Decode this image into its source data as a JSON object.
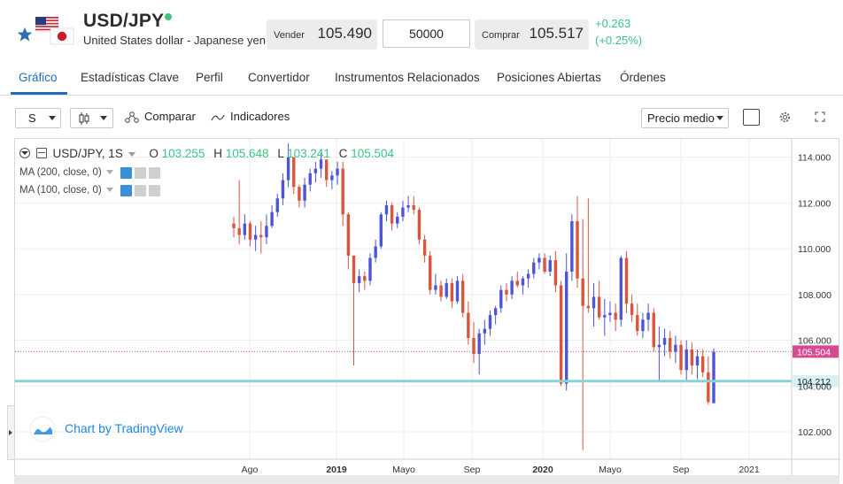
{
  "header": {
    "symbol": "USD/JPY",
    "name": "United States dollar - Japanese yen",
    "sell_label": "Vender",
    "sell_price": "105.490",
    "quantity": "50000",
    "buy_label": "Comprar",
    "buy_price": "105.517",
    "change_abs": "+0.263",
    "change_pct": "(+0.25%)",
    "colors": {
      "up": "#3dc486",
      "accent": "#1d6fb8",
      "star": "#2f6fb0"
    }
  },
  "tabs": [
    {
      "label": "Gráfico",
      "active": true
    },
    {
      "label": "Estadísticas Clave"
    },
    {
      "label": "Perfil"
    },
    {
      "label": "Convertidor"
    },
    {
      "label": "Instrumentos Relacionados"
    },
    {
      "label": "Posiciones Abiertas"
    },
    {
      "label": "Órdenes"
    }
  ],
  "toolbar": {
    "interval": "S",
    "compare_label": "Comparar",
    "indicators_label": "Indicadores",
    "price_type": "Precio medio"
  },
  "legend": {
    "title": "USD/JPY, 1S",
    "o_label": "O",
    "o": "103.255",
    "h_label": "H",
    "h": "105.648",
    "l_label": "L",
    "l": "103.241",
    "c_label": "C",
    "c": "105.504",
    "ma1": "MA (200, close, 0)",
    "ma2": "MA (100, close, 0)"
  },
  "branding": {
    "text": "Chart by TradingView"
  },
  "chart_data": {
    "type": "candlestick",
    "interval": "1S",
    "x_ticks": [
      "Ago",
      "2019",
      "Mayo",
      "Sep",
      "2020",
      "Mayo",
      "Sep",
      "2021"
    ],
    "y_ticks": [
      "114.000",
      "112.000",
      "110.000",
      "108.000",
      "106.000",
      "104.000",
      "102.000"
    ],
    "ylim": [
      100.8,
      114.8
    ],
    "last_price": "105.504",
    "horizontal_line": "104.212",
    "colors": {
      "up": "#4e54d6",
      "down": "#d9553b",
      "last_line": "#d44c8f",
      "hline": "#86d3d8"
    },
    "candles": [
      [
        111.1,
        111.4,
        110.5,
        110.9
      ],
      [
        110.9,
        113.0,
        110.2,
        110.6
      ],
      [
        110.6,
        111.5,
        110.4,
        111.1
      ],
      [
        111.1,
        111.2,
        110.1,
        110.4
      ],
      [
        110.4,
        111.0,
        109.9,
        110.6
      ],
      [
        110.6,
        111.2,
        109.8,
        110.5
      ],
      [
        110.5,
        111.5,
        110.2,
        111.0
      ],
      [
        111.0,
        111.9,
        110.9,
        111.6
      ],
      [
        111.6,
        112.4,
        111.4,
        112.2
      ],
      [
        112.2,
        113.3,
        111.9,
        113.0
      ],
      [
        113.0,
        114.6,
        112.7,
        114.0
      ],
      [
        114.0,
        114.0,
        112.4,
        112.7
      ],
      [
        112.7,
        112.8,
        111.8,
        112.1
      ],
      [
        112.1,
        113.1,
        111.8,
        112.8
      ],
      [
        112.8,
        113.5,
        112.5,
        113.3
      ],
      [
        113.3,
        113.8,
        112.9,
        113.5
      ],
      [
        113.5,
        114.2,
        113.1,
        113.9
      ],
      [
        113.9,
        113.9,
        112.7,
        113.0
      ],
      [
        113.0,
        113.4,
        112.6,
        113.2
      ],
      [
        113.2,
        113.8,
        112.8,
        113.5
      ],
      [
        113.5,
        113.8,
        111.0,
        111.5
      ],
      [
        111.5,
        111.6,
        109.1,
        109.7
      ],
      [
        109.7,
        109.7,
        104.9,
        108.5
      ],
      [
        108.5,
        109.1,
        108.1,
        108.8
      ],
      [
        108.8,
        109.0,
        108.2,
        108.6
      ],
      [
        108.6,
        109.8,
        108.4,
        109.6
      ],
      [
        109.6,
        110.4,
        109.4,
        110.1
      ],
      [
        110.1,
        111.6,
        110.0,
        111.5
      ],
      [
        111.5,
        112.1,
        111.2,
        111.9
      ],
      [
        111.9,
        112.0,
        110.8,
        111.1
      ],
      [
        111.1,
        111.6,
        110.9,
        111.4
      ],
      [
        111.4,
        112.1,
        111.2,
        111.8
      ],
      [
        111.8,
        112.3,
        111.6,
        111.9
      ],
      [
        111.9,
        112.3,
        111.5,
        111.7
      ],
      [
        111.7,
        111.8,
        110.2,
        110.4
      ],
      [
        110.4,
        110.6,
        109.4,
        109.7
      ],
      [
        109.7,
        109.9,
        108.0,
        108.2
      ],
      [
        108.2,
        108.9,
        108.0,
        108.4
      ],
      [
        108.4,
        108.6,
        107.7,
        107.9
      ],
      [
        107.9,
        108.7,
        107.8,
        108.5
      ],
      [
        108.5,
        108.7,
        107.4,
        107.7
      ],
      [
        107.7,
        108.8,
        107.6,
        108.6
      ],
      [
        108.6,
        108.9,
        107.0,
        107.2
      ],
      [
        107.2,
        107.7,
        105.8,
        106.1
      ],
      [
        106.1,
        106.8,
        105.0,
        105.4
      ],
      [
        105.4,
        106.5,
        104.5,
        106.3
      ],
      [
        106.3,
        106.9,
        105.8,
        106.5
      ],
      [
        106.5,
        107.3,
        106.2,
        107.1
      ],
      [
        107.1,
        107.5,
        106.7,
        107.4
      ],
      [
        107.4,
        108.4,
        107.2,
        108.2
      ],
      [
        108.2,
        108.5,
        107.7,
        108.0
      ],
      [
        108.0,
        108.8,
        107.8,
        108.6
      ],
      [
        108.6,
        109.0,
        108.3,
        108.4
      ],
      [
        108.4,
        108.8,
        108.0,
        108.7
      ],
      [
        108.7,
        109.1,
        108.3,
        108.9
      ],
      [
        108.9,
        109.6,
        108.7,
        109.4
      ],
      [
        109.4,
        109.8,
        109.1,
        109.6
      ],
      [
        109.6,
        109.8,
        108.9,
        109.0
      ],
      [
        109.0,
        109.7,
        108.8,
        109.5
      ],
      [
        109.5,
        109.9,
        108.1,
        108.4
      ],
      [
        108.4,
        108.6,
        104.0,
        104.1
      ],
      [
        104.1,
        109.8,
        103.8,
        109.0
      ],
      [
        109.0,
        111.5,
        108.6,
        111.2
      ],
      [
        111.2,
        112.3,
        108.3,
        108.7
      ],
      [
        108.7,
        111.3,
        101.2,
        107.5
      ],
      [
        107.5,
        112.2,
        107.2,
        107.4
      ],
      [
        107.4,
        108.5,
        106.6,
        107.9
      ],
      [
        107.9,
        108.6,
        106.9,
        107.0
      ],
      [
        107.0,
        107.8,
        106.2,
        107.1
      ],
      [
        107.1,
        107.7,
        106.8,
        107.2
      ],
      [
        107.2,
        107.6,
        106.4,
        106.9
      ],
      [
        106.9,
        109.7,
        106.6,
        109.6
      ],
      [
        109.6,
        109.9,
        107.2,
        107.6
      ],
      [
        107.6,
        108.0,
        106.8,
        107.1
      ],
      [
        107.1,
        107.6,
        106.2,
        106.4
      ],
      [
        106.4,
        107.2,
        106.1,
        106.9
      ],
      [
        106.9,
        107.6,
        106.4,
        107.2
      ],
      [
        107.2,
        107.4,
        105.5,
        105.7
      ],
      [
        105.7,
        106.6,
        104.2,
        105.8
      ],
      [
        105.8,
        106.5,
        105.3,
        106.1
      ],
      [
        106.1,
        106.4,
        105.2,
        105.5
      ],
      [
        105.5,
        106.2,
        105.0,
        105.8
      ],
      [
        105.8,
        106.0,
        104.5,
        104.7
      ],
      [
        104.7,
        106.0,
        104.2,
        105.6
      ],
      [
        105.6,
        105.9,
        104.5,
        104.9
      ],
      [
        104.9,
        105.6,
        104.3,
        105.3
      ],
      [
        105.3,
        105.6,
        104.4,
        104.6
      ],
      [
        104.6,
        105.3,
        103.2,
        103.3
      ],
      [
        103.25,
        105.65,
        103.24,
        105.5
      ]
    ]
  }
}
